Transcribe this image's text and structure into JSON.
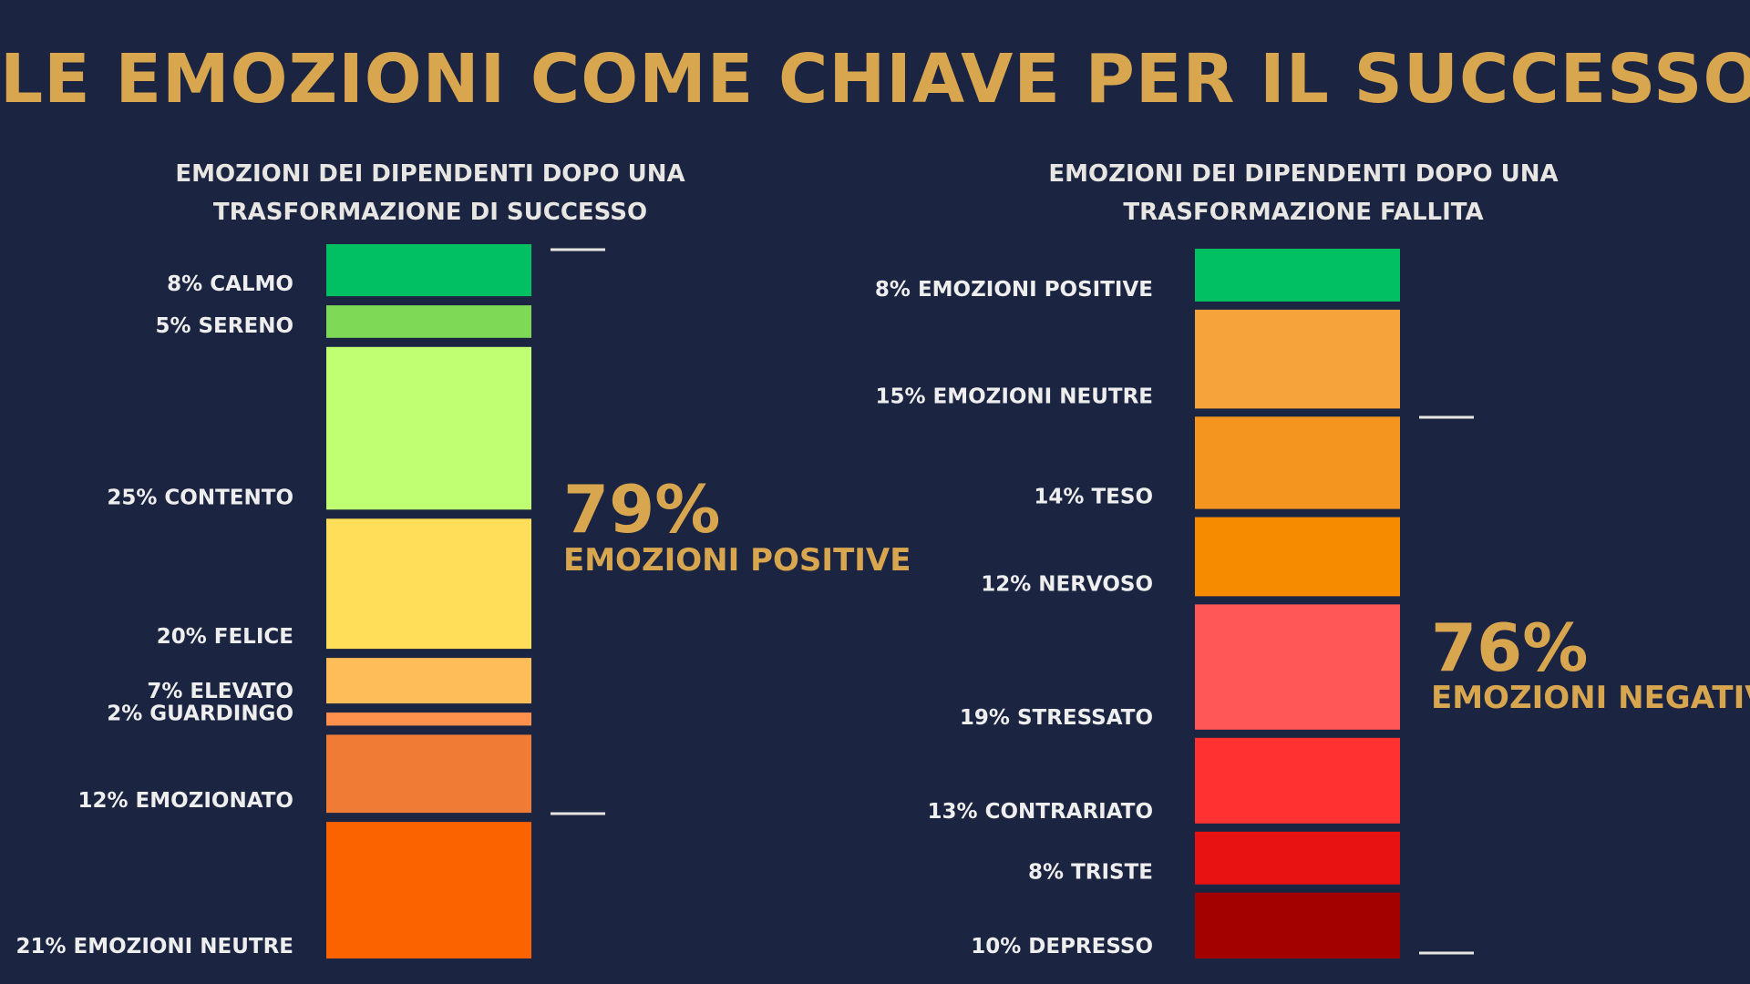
{
  "title": "LE EMOZIONI COME CHIAVE PER IL SUCCESSO",
  "chart_data": [
    {
      "type": "bar",
      "subtype": "stacked-column",
      "title_lines": [
        "EMOZIONI DEI DIPENDENTI DOPO UNA",
        "TRASFORMAZIONE DI SUCCESSO"
      ],
      "segments": [
        {
          "label": "8% CALMO",
          "value": 8,
          "color": "#00c063"
        },
        {
          "label": "5% SERENO",
          "value": 5,
          "color": "#7ed957"
        },
        {
          "label": "25% CONTENTO",
          "value": 25,
          "color": "#c1ff72"
        },
        {
          "label": "20% FELICE",
          "value": 20,
          "color": "#ffde59"
        },
        {
          "label": "7% ELEVATO",
          "value": 7,
          "color": "#ffbd59"
        },
        {
          "label": "2% GUARDINGO",
          "value": 2,
          "color": "#ff914d"
        },
        {
          "label": "12% EMOZIONATO",
          "value": 12,
          "color": "#ef7b35"
        },
        {
          "label": "21% EMOZIONI NEUTRE",
          "value": 21,
          "color": "#fa6300"
        }
      ],
      "annotation": {
        "value": "79%",
        "caption": "EMOZIONI POSITIVE"
      }
    },
    {
      "type": "bar",
      "subtype": "stacked-column",
      "title_lines": [
        "EMOZIONI DEI DIPENDENTI DOPO UNA",
        "TRASFORMAZIONE FALLITA"
      ],
      "segments": [
        {
          "label": "8% EMOZIONI POSITIVE",
          "value": 8,
          "color": "#00c063"
        },
        {
          "label": "15% EMOZIONI NEUTRE",
          "value": 15,
          "color": "#f5a33a"
        },
        {
          "label": "14% TESO",
          "value": 14,
          "color": "#f4951f"
        },
        {
          "label": "12% NERVOSO",
          "value": 12,
          "color": "#f78b00"
        },
        {
          "label": "19% STRESSATO",
          "value": 19,
          "color": "#ff5757"
        },
        {
          "label": "13% CONTRARIATO",
          "value": 13,
          "color": "#ff3131"
        },
        {
          "label": "8% TRISTE",
          "value": 8,
          "color": "#e91212"
        },
        {
          "label": "10% DEPRESSO",
          "value": 10,
          "color": "#a30000"
        }
      ],
      "annotation": {
        "value": "76%",
        "caption": "EMOZIONI NEGATIVE"
      }
    }
  ]
}
